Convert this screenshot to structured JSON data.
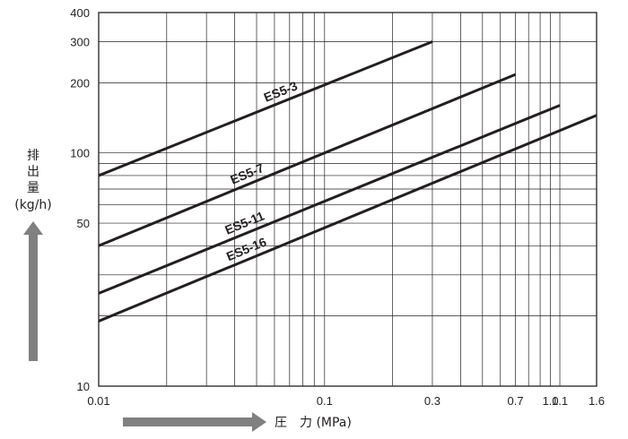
{
  "chart_data": {
    "type": "line",
    "x_scale": "log",
    "y_scale": "log",
    "xlim": [
      0.01,
      1.6
    ],
    "ylim": [
      10,
      400
    ],
    "grid": true,
    "x_ticks": [
      {
        "value": 0.01,
        "label": "0.01"
      },
      {
        "value": 0.1,
        "label": "0.1"
      },
      {
        "value": 0.3,
        "label": "0.3"
      },
      {
        "value": 0.7,
        "label": "0.7"
      },
      {
        "value": 1.0,
        "label": "1.0"
      },
      {
        "value": 1.1,
        "label": "1.1"
      },
      {
        "value": 1.6,
        "label": "1.6"
      }
    ],
    "y_ticks": [
      {
        "value": 10,
        "label": "10"
      },
      {
        "value": 50,
        "label": "50"
      },
      {
        "value": 100,
        "label": "100"
      },
      {
        "value": 200,
        "label": "200"
      },
      {
        "value": 300,
        "label": "300"
      },
      {
        "value": 400,
        "label": "400"
      }
    ],
    "x_grid": [
      0.01,
      0.02,
      0.03,
      0.04,
      0.05,
      0.06,
      0.07,
      0.08,
      0.09,
      0.1,
      0.2,
      0.3,
      0.4,
      0.5,
      0.6,
      0.7,
      0.8,
      0.9,
      1.0,
      1.1,
      1.6
    ],
    "y_grid": [
      10,
      20,
      30,
      40,
      50,
      60,
      70,
      80,
      90,
      100,
      200,
      300,
      400
    ],
    "xlabel": "圧　力 (MPa)",
    "ylabel_chars": [
      "排",
      "出",
      "量"
    ],
    "ylabel_unit": "(kg/h)",
    "series": [
      {
        "name": "ES5-3",
        "points": [
          [
            0.01,
            80
          ],
          [
            0.3,
            300
          ]
        ]
      },
      {
        "name": "ES5-7",
        "points": [
          [
            0.01,
            40
          ],
          [
            0.7,
            217
          ]
        ]
      },
      {
        "name": "ES5-11",
        "points": [
          [
            0.01,
            25
          ],
          [
            1.1,
            160
          ]
        ]
      },
      {
        "name": "ES5-16",
        "points": [
          [
            0.01,
            19
          ],
          [
            1.6,
            145
          ]
        ]
      }
    ]
  },
  "colors": {
    "line": "#231f20",
    "grid": "#231f20",
    "arrow": "#808080"
  }
}
